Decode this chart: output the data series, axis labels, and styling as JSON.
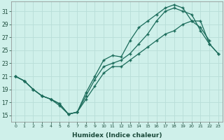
{
  "xlabel": "Humidex (Indice chaleur)",
  "bg_color": "#cff0ea",
  "grid_color": "#b8ddd8",
  "line_color": "#1a6b5a",
  "xlim": [
    -0.5,
    23.5
  ],
  "ylim": [
    14.0,
    32.5
  ],
  "xticks": [
    0,
    1,
    2,
    3,
    4,
    5,
    6,
    7,
    8,
    9,
    10,
    11,
    12,
    13,
    14,
    15,
    16,
    17,
    18,
    19,
    20,
    21,
    22,
    23
  ],
  "yticks": [
    15,
    17,
    19,
    21,
    23,
    25,
    27,
    29,
    31
  ],
  "line1_x": [
    0,
    1,
    2,
    3,
    4,
    5,
    6,
    7,
    8,
    9,
    10,
    11,
    12,
    13,
    14,
    15,
    16,
    17,
    18,
    19,
    20,
    21,
    22,
    23
  ],
  "line1_y": [
    21.0,
    20.3,
    19.0,
    18.0,
    17.5,
    16.8,
    15.2,
    15.5,
    18.5,
    21.0,
    23.5,
    24.2,
    24.0,
    26.5,
    28.5,
    29.5,
    30.5,
    31.5,
    32.0,
    31.5,
    29.5,
    28.5,
    26.5,
    null
  ],
  "line2_x": [
    0,
    1,
    2,
    3,
    4,
    5,
    6,
    7,
    8,
    9,
    10,
    11,
    12,
    13,
    14,
    15,
    16,
    17,
    18,
    19,
    20,
    21,
    22,
    23
  ],
  "line2_y": [
    21.0,
    20.3,
    19.0,
    18.0,
    17.5,
    16.5,
    15.2,
    15.5,
    18.0,
    20.5,
    22.5,
    23.0,
    23.5,
    24.5,
    26.0,
    27.5,
    29.5,
    31.0,
    31.5,
    31.0,
    30.5,
    28.0,
    26.0,
    24.5
  ],
  "line3_x": [
    0,
    1,
    2,
    3,
    4,
    5,
    6,
    7,
    8,
    9,
    10,
    11,
    12,
    13,
    14,
    15,
    16,
    17,
    18,
    19,
    20,
    21,
    22,
    23
  ],
  "line3_y": [
    21.0,
    20.3,
    19.0,
    18.0,
    17.5,
    16.8,
    15.2,
    15.5,
    17.5,
    19.5,
    21.5,
    22.5,
    22.5,
    23.5,
    24.5,
    25.5,
    26.5,
    27.5,
    28.0,
    29.0,
    29.5,
    29.5,
    26.0,
    24.5
  ]
}
